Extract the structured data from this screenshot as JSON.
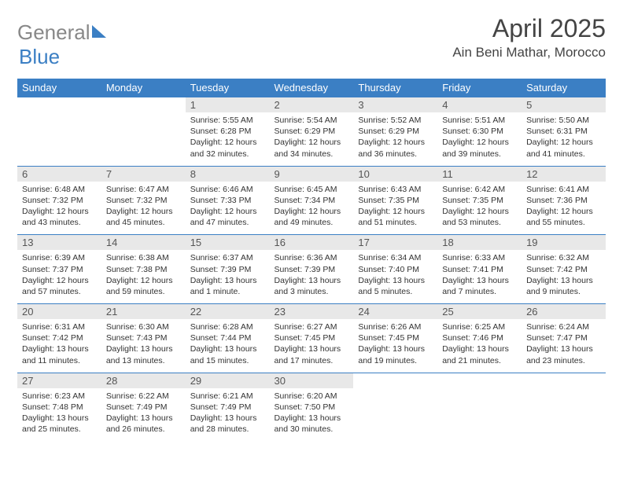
{
  "logo": {
    "text1": "General",
    "text2": "Blue"
  },
  "title": "April 2025",
  "location": "Ain Beni Mathar, Morocco",
  "header_bg": "#3b7fc4",
  "daynum_bg": "#e8e8e8",
  "days": [
    "Sunday",
    "Monday",
    "Tuesday",
    "Wednesday",
    "Thursday",
    "Friday",
    "Saturday"
  ],
  "weeks": [
    [
      null,
      null,
      {
        "n": "1",
        "sr": "5:55 AM",
        "ss": "6:28 PM",
        "dl": "12 hours and 32 minutes."
      },
      {
        "n": "2",
        "sr": "5:54 AM",
        "ss": "6:29 PM",
        "dl": "12 hours and 34 minutes."
      },
      {
        "n": "3",
        "sr": "5:52 AM",
        "ss": "6:29 PM",
        "dl": "12 hours and 36 minutes."
      },
      {
        "n": "4",
        "sr": "5:51 AM",
        "ss": "6:30 PM",
        "dl": "12 hours and 39 minutes."
      },
      {
        "n": "5",
        "sr": "5:50 AM",
        "ss": "6:31 PM",
        "dl": "12 hours and 41 minutes."
      }
    ],
    [
      {
        "n": "6",
        "sr": "6:48 AM",
        "ss": "7:32 PM",
        "dl": "12 hours and 43 minutes."
      },
      {
        "n": "7",
        "sr": "6:47 AM",
        "ss": "7:32 PM",
        "dl": "12 hours and 45 minutes."
      },
      {
        "n": "8",
        "sr": "6:46 AM",
        "ss": "7:33 PM",
        "dl": "12 hours and 47 minutes."
      },
      {
        "n": "9",
        "sr": "6:45 AM",
        "ss": "7:34 PM",
        "dl": "12 hours and 49 minutes."
      },
      {
        "n": "10",
        "sr": "6:43 AM",
        "ss": "7:35 PM",
        "dl": "12 hours and 51 minutes."
      },
      {
        "n": "11",
        "sr": "6:42 AM",
        "ss": "7:35 PM",
        "dl": "12 hours and 53 minutes."
      },
      {
        "n": "12",
        "sr": "6:41 AM",
        "ss": "7:36 PM",
        "dl": "12 hours and 55 minutes."
      }
    ],
    [
      {
        "n": "13",
        "sr": "6:39 AM",
        "ss": "7:37 PM",
        "dl": "12 hours and 57 minutes."
      },
      {
        "n": "14",
        "sr": "6:38 AM",
        "ss": "7:38 PM",
        "dl": "12 hours and 59 minutes."
      },
      {
        "n": "15",
        "sr": "6:37 AM",
        "ss": "7:39 PM",
        "dl": "13 hours and 1 minute."
      },
      {
        "n": "16",
        "sr": "6:36 AM",
        "ss": "7:39 PM",
        "dl": "13 hours and 3 minutes."
      },
      {
        "n": "17",
        "sr": "6:34 AM",
        "ss": "7:40 PM",
        "dl": "13 hours and 5 minutes."
      },
      {
        "n": "18",
        "sr": "6:33 AM",
        "ss": "7:41 PM",
        "dl": "13 hours and 7 minutes."
      },
      {
        "n": "19",
        "sr": "6:32 AM",
        "ss": "7:42 PM",
        "dl": "13 hours and 9 minutes."
      }
    ],
    [
      {
        "n": "20",
        "sr": "6:31 AM",
        "ss": "7:42 PM",
        "dl": "13 hours and 11 minutes."
      },
      {
        "n": "21",
        "sr": "6:30 AM",
        "ss": "7:43 PM",
        "dl": "13 hours and 13 minutes."
      },
      {
        "n": "22",
        "sr": "6:28 AM",
        "ss": "7:44 PM",
        "dl": "13 hours and 15 minutes."
      },
      {
        "n": "23",
        "sr": "6:27 AM",
        "ss": "7:45 PM",
        "dl": "13 hours and 17 minutes."
      },
      {
        "n": "24",
        "sr": "6:26 AM",
        "ss": "7:45 PM",
        "dl": "13 hours and 19 minutes."
      },
      {
        "n": "25",
        "sr": "6:25 AM",
        "ss": "7:46 PM",
        "dl": "13 hours and 21 minutes."
      },
      {
        "n": "26",
        "sr": "6:24 AM",
        "ss": "7:47 PM",
        "dl": "13 hours and 23 minutes."
      }
    ],
    [
      {
        "n": "27",
        "sr": "6:23 AM",
        "ss": "7:48 PM",
        "dl": "13 hours and 25 minutes."
      },
      {
        "n": "28",
        "sr": "6:22 AM",
        "ss": "7:49 PM",
        "dl": "13 hours and 26 minutes."
      },
      {
        "n": "29",
        "sr": "6:21 AM",
        "ss": "7:49 PM",
        "dl": "13 hours and 28 minutes."
      },
      {
        "n": "30",
        "sr": "6:20 AM",
        "ss": "7:50 PM",
        "dl": "13 hours and 30 minutes."
      },
      null,
      null,
      null
    ]
  ],
  "labels": {
    "sunrise": "Sunrise:",
    "sunset": "Sunset:",
    "daylight": "Daylight:"
  }
}
